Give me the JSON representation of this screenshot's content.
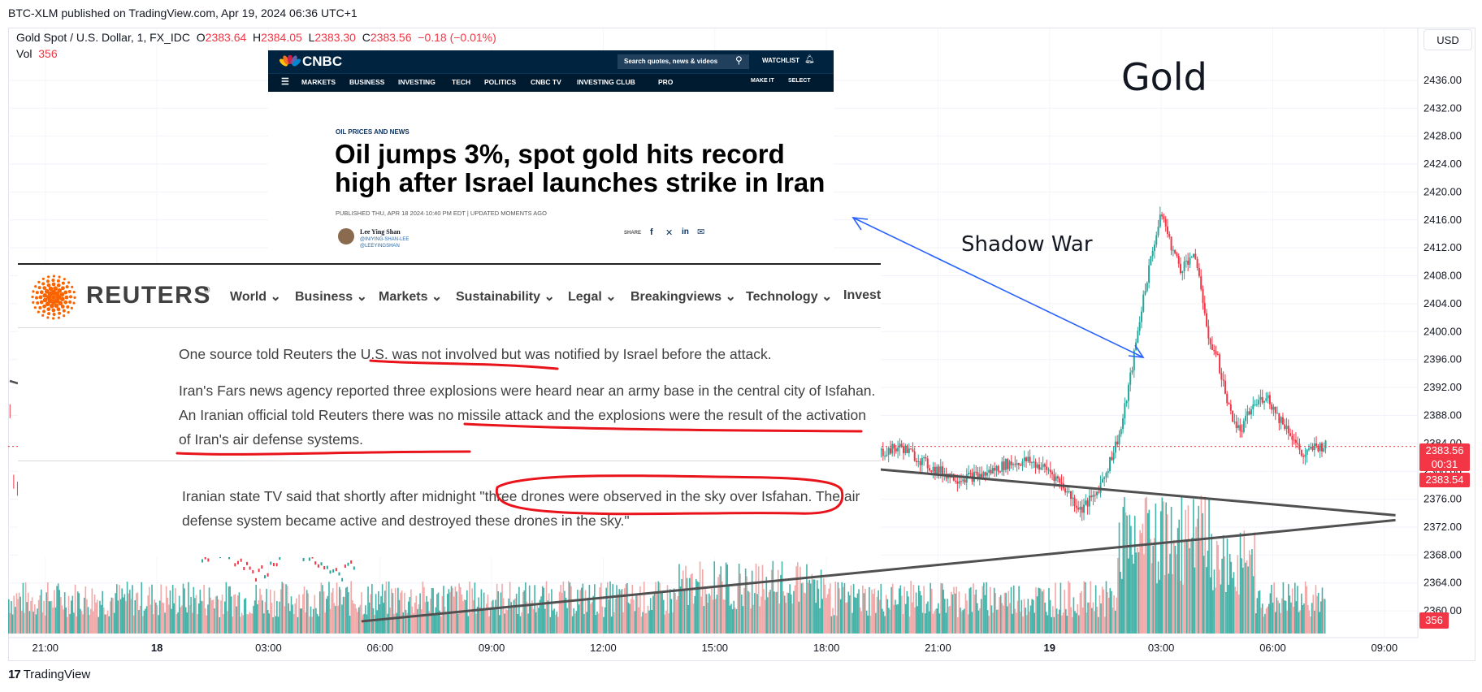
{
  "published_line": "BTC-XLM published on TradingView.com, Apr 19, 2024 06:36 UTC+1",
  "legend": {
    "symbol": "Gold Spot / U.S. Dollar, 1, FX_IDC",
    "o_label": "O",
    "o_val": "2383.64",
    "h_label": "H",
    "h_val": "2384.05",
    "l_label": "L",
    "l_val": "2383.30",
    "c_label": "C",
    "c_val": "2383.56",
    "change": "−0.18 (−0.01%)",
    "vol_label": "Vol",
    "vol_val": "356"
  },
  "currency": "USD",
  "chart_title": "Gold",
  "annotation_label": "Shadow War",
  "price_badge": {
    "price": "2383.56",
    "countdown": "00:31",
    "second": "2383.54"
  },
  "vol_badge": "356",
  "footer_logo": "TradingView",
  "colors": {
    "up": "#26a69a",
    "down": "#f23645",
    "arrow": "#2962ff",
    "trendline": "#505050",
    "highlight": "#e8131b"
  },
  "chart_data": {
    "type": "candlestick",
    "symbol": "Gold Spot / U.S. Dollar",
    "interval": "1",
    "y_ticks": [
      "2436.00",
      "2432.00",
      "2428.00",
      "2424.00",
      "2420.00",
      "2416.00",
      "2412.00",
      "2408.00",
      "2404.00",
      "2400.00",
      "2396.00",
      "2392.00",
      "2388.00",
      "2384.00",
      "2380.00",
      "2376.00",
      "2372.00",
      "2368.00",
      "2364.00",
      "2360.00"
    ],
    "ylim": [
      2358.5,
      2437.5
    ],
    "x_ticks": [
      {
        "label": "21:00",
        "x": 21
      },
      {
        "label": "18",
        "x": 24,
        "bold": true
      },
      {
        "label": "03:00",
        "x": 27
      },
      {
        "label": "06:00",
        "x": 30
      },
      {
        "label": "09:00",
        "x": 33
      },
      {
        "label": "12:00",
        "x": 36
      },
      {
        "label": "15:00",
        "x": 39
      },
      {
        "label": "18:00",
        "x": 42
      },
      {
        "label": "21:00",
        "x": 45
      },
      {
        "label": "19",
        "x": 48,
        "bold": true
      },
      {
        "label": "03:00",
        "x": 51
      },
      {
        "label": "06:00",
        "x": 54
      },
      {
        "label": "09:00",
        "x": 57
      }
    ],
    "price_path": [
      [
        42.5,
        2384.0
      ],
      [
        43.3,
        2382.5
      ],
      [
        44.0,
        2383.5
      ],
      [
        44.8,
        2380.5
      ],
      [
        45.5,
        2379.0
      ],
      [
        46.2,
        2379.5
      ],
      [
        46.8,
        2381.0
      ],
      [
        47.4,
        2381.5
      ],
      [
        48.0,
        2380.0
      ],
      [
        48.4,
        2377.5
      ],
      [
        48.8,
        2374.5
      ],
      [
        49.2,
        2376.5
      ],
      [
        49.5,
        2380.0
      ],
      [
        49.9,
        2386.0
      ],
      [
        50.2,
        2395.0
      ],
      [
        50.5,
        2405.0
      ],
      [
        50.8,
        2413.0
      ],
      [
        51.0,
        2417.0
      ],
      [
        51.2,
        2413.0
      ],
      [
        51.5,
        2409.0
      ],
      [
        51.8,
        2411.0
      ],
      [
        52.0,
        2408.5
      ],
      [
        52.2,
        2400.0
      ],
      [
        52.5,
        2396.0
      ],
      [
        52.8,
        2389.0
      ],
      [
        53.1,
        2385.5
      ],
      [
        53.4,
        2389.0
      ],
      [
        53.8,
        2391.0
      ],
      [
        54.1,
        2388.0
      ],
      [
        54.4,
        2386.0
      ],
      [
        54.8,
        2382.0
      ],
      [
        55.1,
        2383.5
      ],
      [
        55.4,
        2383.6
      ]
    ],
    "triangle_upper": [
      [
        42.5,
        2380.7
      ],
      [
        57.3,
        2373.7
      ]
    ],
    "triangle_lower": [
      [
        29.5,
        2358.5
      ],
      [
        57.3,
        2373.0
      ]
    ],
    "current_price": 2383.56
  },
  "cnbc": {
    "logo": "CNBC",
    "search": "Search quotes, news & videos",
    "watchlist": "WATCHLIST",
    "nav": [
      "MARKETS",
      "BUSINESS",
      "INVESTING",
      "TECH",
      "POLITICS",
      "CNBC TV",
      "INVESTING CLUB",
      "PRO"
    ],
    "nav_right": [
      "MAKE IT",
      "SELECT"
    ],
    "kicker": "OIL PRICES AND NEWS",
    "headline": "Oil jumps 3%, spot gold hits record high after Israel launches strike in Iran",
    "dateline": "PUBLISHED THU, APR 18 2024·10:40 PM EDT | UPDATED MOMENTS AGO",
    "author": "Lee Ying Shan",
    "handle1": "@IN/YING-SHAN-LEE",
    "handle2": "@LEEYINGSHAN",
    "share": "SHARE"
  },
  "reuters": {
    "logo": "REUTERS",
    "nav": [
      "World",
      "Business",
      "Markets",
      "Sustainability",
      "Legal",
      "Breakingviews",
      "Technology",
      "Invest"
    ],
    "p1": "One source told Reuters the U.S. was not involved but was notified by Israel before the attack.",
    "p2": "Iran's Fars news agency reported three explosions were heard near an army base in the central city of Isfahan. An Iranian official told Reuters there was no missile attack and the explosions were the result of the activation of Iran's air defense systems.",
    "p3": "Iranian state TV said that shortly after midnight \"three drones were observed in the sky over Isfahan. The air defense system became active and destroyed these drones in the sky.\""
  }
}
